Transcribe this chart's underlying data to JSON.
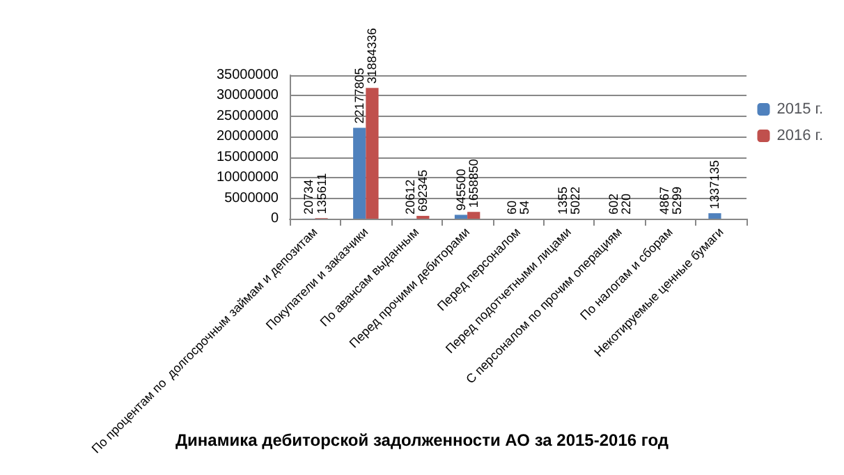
{
  "chart_data": {
    "type": "bar",
    "title": "Динамика дебиторской задолженности АО за 2015-2016 год",
    "categories": [
      "По процентам по  долгосрочным займам и депозитам",
      "Покупатели и заказчики",
      "По авансам выданным",
      "Перед прочими дебиторами",
      "Перед персоналом",
      "Перед подотчетными лицами",
      "С персоналом по прочим операциям",
      "По налогам и сборам",
      "Некотируемые ценные бумаги"
    ],
    "series": [
      {
        "name": "2015 г.",
        "color": "#4f81bd",
        "values": [
          20734,
          22177805,
          20612,
          945500,
          60,
          1355,
          602,
          4867,
          1337135
        ]
      },
      {
        "name": "2016 г.",
        "color": "#c0504d",
        "values": [
          135611,
          31884336,
          692345,
          1658850,
          54,
          5022,
          220,
          5299,
          null
        ]
      }
    ],
    "ylim": [
      0,
      35000000
    ],
    "yticks": [
      0,
      5000000,
      10000000,
      15000000,
      20000000,
      25000000,
      30000000,
      35000000
    ],
    "grid": "y",
    "legend": "right",
    "data_labels": true
  }
}
